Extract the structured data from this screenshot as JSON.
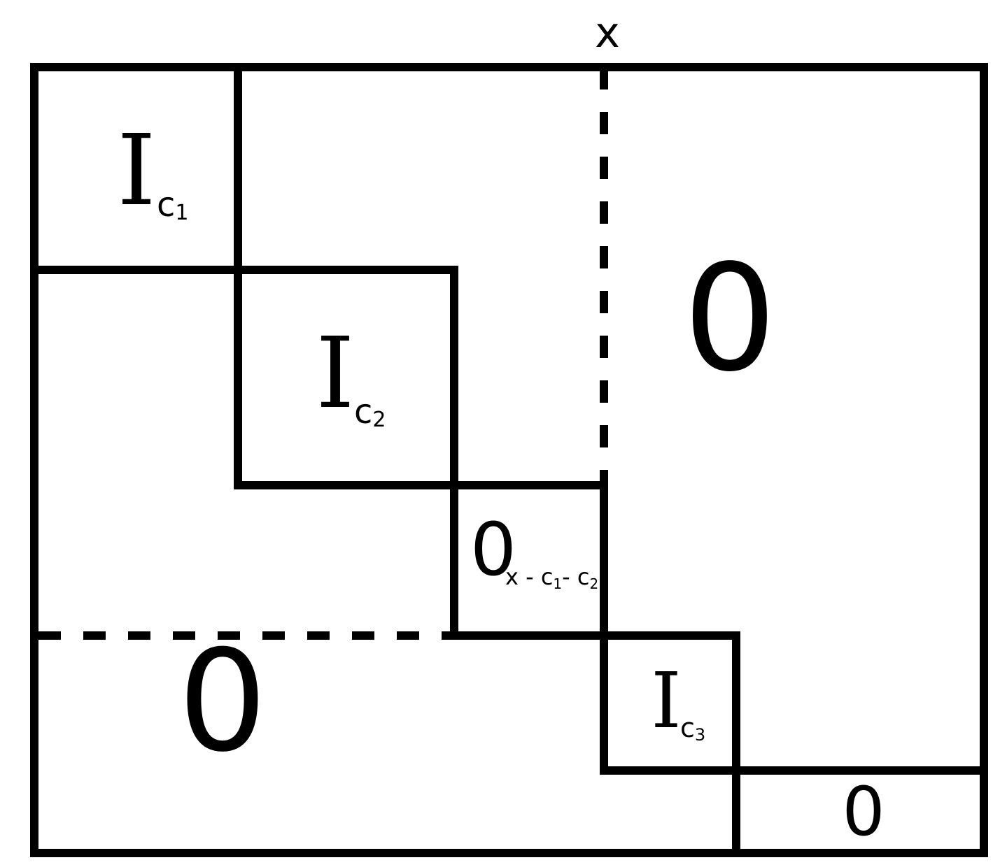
{
  "diagram": {
    "axis_label": "x",
    "blocks": {
      "ic1": {
        "main": "I",
        "sub_letter": "c",
        "sub_index": "1"
      },
      "ic2": {
        "main": "I",
        "sub_letter": "c",
        "sub_index": "2"
      },
      "ic3": {
        "main": "I",
        "sub_letter": "c",
        "sub_index": "3"
      },
      "zero_middle": {
        "main": "0",
        "sub_part1": "x - c",
        "sub_index1": "1",
        "sub_part2": "- c",
        "sub_index2": "2"
      },
      "zero_right": {
        "main": "0"
      },
      "zero_bottom_left": {
        "main": "0"
      },
      "zero_corner": {
        "main": "0"
      }
    }
  }
}
